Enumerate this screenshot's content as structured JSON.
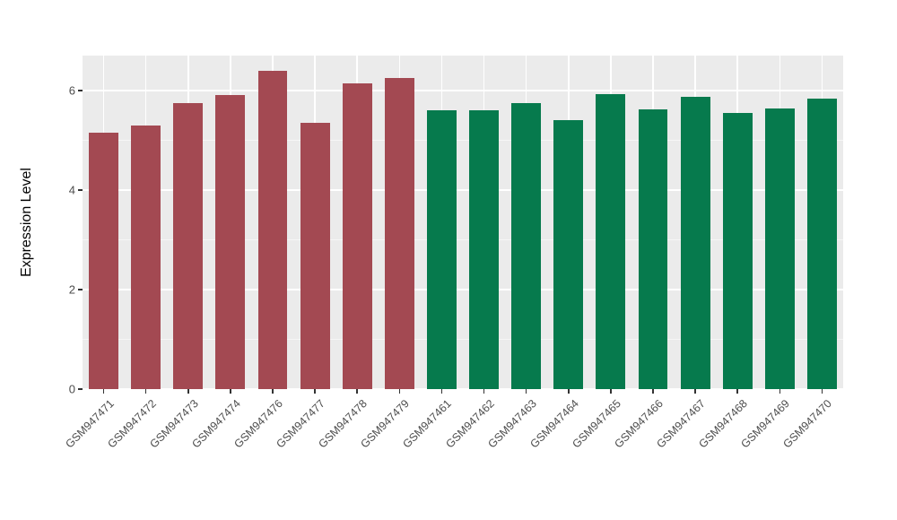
{
  "chart_data": {
    "type": "bar",
    "title": "",
    "xlabel": "",
    "ylabel": "Expression Level",
    "categories": [
      "GSM947471",
      "GSM947472",
      "GSM947473",
      "GSM947474",
      "GSM947476",
      "GSM947477",
      "GSM947478",
      "GSM947479",
      "GSM947461",
      "GSM947462",
      "GSM947463",
      "GSM947464",
      "GSM947465",
      "GSM947466",
      "GSM947467",
      "GSM947468",
      "GSM947469",
      "GSM947470"
    ],
    "values": [
      5.15,
      5.3,
      5.75,
      5.9,
      6.4,
      5.35,
      6.15,
      6.25,
      5.6,
      5.6,
      5.75,
      5.4,
      5.93,
      5.62,
      5.87,
      5.55,
      5.63,
      5.84
    ],
    "bar_color_group": [
      0,
      0,
      0,
      0,
      0,
      0,
      0,
      0,
      1,
      1,
      1,
      1,
      1,
      1,
      1,
      1,
      1,
      1
    ],
    "group_colors": [
      "#A34952",
      "#067A4D"
    ],
    "ylim": [
      0,
      6.7
    ],
    "yticks": [
      0,
      2,
      4,
      6
    ],
    "yticks_minor": [
      1,
      3,
      5
    ],
    "grid": "horizontal major+minor, vertical major",
    "legend": "none",
    "panel_bg": "#EBEBEB",
    "grid_color": "#FFFFFF",
    "tick_label_color": "#4D4D4D"
  }
}
